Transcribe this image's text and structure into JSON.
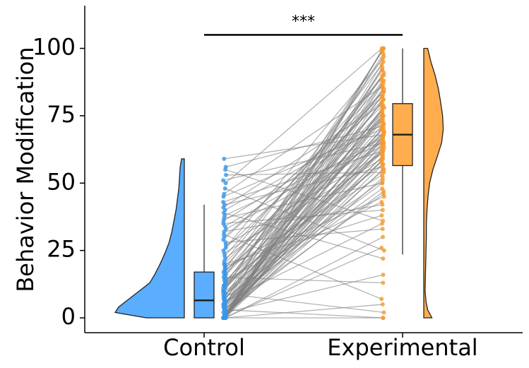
{
  "chart_data": {
    "type": "raincloud",
    "ylabel": "Behavior Modification",
    "xlabel": "",
    "ylim": [
      -5,
      115
    ],
    "yticks": [
      0,
      25,
      50,
      75,
      100
    ],
    "categories": [
      "Control",
      "Experimental"
    ],
    "colors": {
      "Control": "#5aadff",
      "Experimental": "#ffad4f",
      "lines": "#808080",
      "control_points": "#3a96e8",
      "experimental_points": "#f59a2f"
    },
    "significance": {
      "label": "***",
      "from": "Control",
      "to": "Experimental",
      "y": 105
    },
    "boxplots": [
      {
        "category": "Control",
        "min": 0,
        "q1": 0,
        "median": 6.5,
        "q3": 17,
        "max": 42
      },
      {
        "category": "Experimental",
        "min": 23.5,
        "q1": 56.5,
        "median": 68,
        "q3": 79.5,
        "max": 100
      }
    ],
    "density": [
      {
        "category": "Control",
        "y": [
          0,
          2,
          4,
          7,
          10,
          13,
          16,
          20,
          24,
          28,
          32,
          36,
          40,
          44,
          48,
          52,
          56,
          59
        ],
        "d": [
          0.55,
          1.0,
          0.95,
          0.8,
          0.65,
          0.5,
          0.43,
          0.35,
          0.28,
          0.22,
          0.18,
          0.15,
          0.12,
          0.1,
          0.08,
          0.07,
          0.06,
          0.04
        ]
      },
      {
        "category": "Experimental",
        "y": [
          0,
          3,
          6,
          10,
          15,
          20,
          25,
          30,
          35,
          40,
          45,
          50,
          55,
          60,
          65,
          70,
          75,
          80,
          85,
          90,
          95,
          100
        ],
        "d": [
          0.25,
          0.12,
          0.07,
          0.04,
          0.05,
          0.06,
          0.07,
          0.08,
          0.08,
          0.1,
          0.13,
          0.18,
          0.28,
          0.42,
          0.55,
          0.6,
          0.58,
          0.52,
          0.45,
          0.35,
          0.22,
          0.12
        ]
      }
    ],
    "paired_values": {
      "Control": [
        0,
        0,
        0,
        0,
        0,
        0,
        0,
        0,
        0,
        0,
        0,
        0,
        0,
        0,
        0,
        0,
        0,
        0,
        0,
        0,
        0,
        0,
        0,
        0,
        1,
        1,
        1,
        1,
        1,
        2,
        2,
        2,
        2,
        2,
        3,
        3,
        3,
        3,
        3,
        4,
        4,
        4,
        4,
        5,
        5,
        5,
        5,
        6,
        6,
        6,
        6,
        7,
        7,
        7,
        8,
        8,
        8,
        9,
        9,
        9,
        10,
        10,
        10,
        11,
        11,
        12,
        12,
        12,
        13,
        13,
        14,
        14,
        15,
        15,
        16,
        16,
        17,
        17,
        18,
        18,
        19,
        19,
        20,
        20,
        21,
        22,
        23,
        24,
        25,
        26,
        27,
        28,
        29,
        30,
        31,
        32,
        33,
        34,
        35,
        36,
        37,
        38,
        39,
        40,
        41,
        42,
        43,
        45,
        46,
        48,
        50,
        51,
        53,
        55,
        56,
        59
      ],
      "Experimental": [
        0,
        0,
        2,
        5,
        7,
        13,
        16,
        22,
        25,
        26,
        30,
        33,
        35,
        36,
        38,
        40,
        42,
        43,
        45,
        46,
        47,
        48,
        50,
        50,
        51,
        52,
        53,
        54,
        55,
        55,
        56,
        57,
        57,
        58,
        58,
        59,
        59,
        60,
        60,
        61,
        61,
        62,
        62,
        62,
        63,
        63,
        64,
        64,
        65,
        65,
        65,
        66,
        66,
        67,
        67,
        67,
        68,
        68,
        68,
        69,
        69,
        70,
        70,
        70,
        71,
        71,
        72,
        72,
        73,
        73,
        74,
        74,
        75,
        75,
        75,
        76,
        76,
        77,
        77,
        78,
        78,
        79,
        79,
        80,
        80,
        81,
        81,
        82,
        82,
        83,
        84,
        84,
        85,
        85,
        86,
        86,
        87,
        88,
        88,
        89,
        90,
        90,
        91,
        92,
        92,
        93,
        94,
        95,
        96,
        97,
        98,
        99,
        99,
        100,
        100,
        100
      ]
    }
  }
}
